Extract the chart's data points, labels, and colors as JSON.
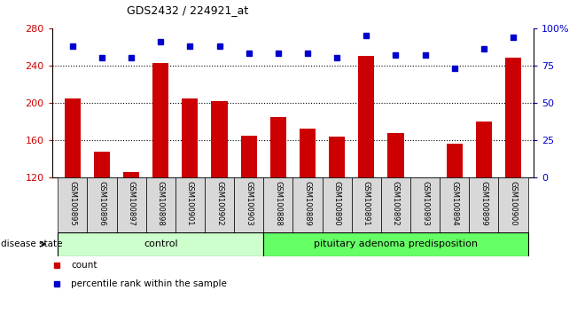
{
  "title": "GDS2432 / 224921_at",
  "samples": [
    "GSM100895",
    "GSM100896",
    "GSM100897",
    "GSM100898",
    "GSM100901",
    "GSM100902",
    "GSM100903",
    "GSM100888",
    "GSM100889",
    "GSM100890",
    "GSM100891",
    "GSM100892",
    "GSM100893",
    "GSM100894",
    "GSM100899",
    "GSM100900"
  ],
  "bar_values": [
    205,
    148,
    126,
    243,
    205,
    202,
    165,
    185,
    172,
    164,
    250,
    168,
    120,
    156,
    180,
    248
  ],
  "percentile_values": [
    88,
    80,
    80,
    91,
    88,
    88,
    83,
    83,
    83,
    80,
    95,
    82,
    82,
    73,
    86,
    94
  ],
  "bar_color": "#cc0000",
  "dot_color": "#0000cc",
  "ylim_left": [
    120,
    280
  ],
  "ylim_right": [
    0,
    100
  ],
  "yticks_left": [
    120,
    160,
    200,
    240,
    280
  ],
  "yticks_right": [
    0,
    25,
    50,
    75,
    100
  ],
  "ytick_labels_right": [
    "0",
    "25",
    "50",
    "75",
    "100%"
  ],
  "grid_values": [
    160,
    200,
    240
  ],
  "control_count": 7,
  "control_label": "control",
  "disease_label": "pituitary adenoma predisposition",
  "disease_state_label": "disease state",
  "legend_bar_label": "count",
  "legend_dot_label": "percentile rank within the sample",
  "control_color": "#ccffcc",
  "disease_color": "#66ff66",
  "label_band_color": "#d8d8d8",
  "background_color": "#ffffff"
}
